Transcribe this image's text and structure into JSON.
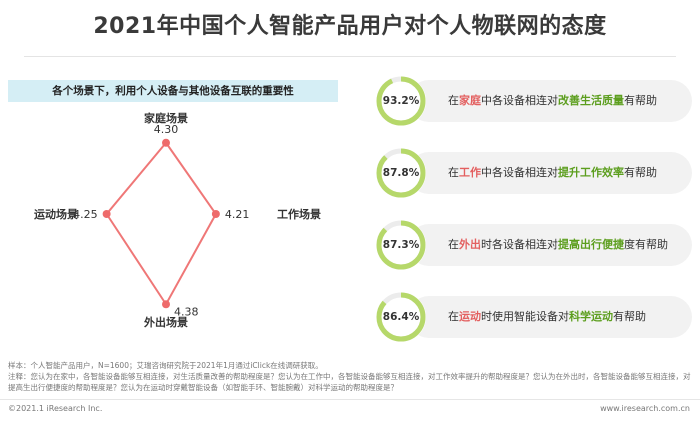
{
  "title": "2021年中国个人智能产品用户对个人物联网的态度",
  "chart_data": [
    {
      "type": "radar",
      "title": "各个场景下，利用个人设备与其他设备互联的重要性",
      "axes": [
        "家庭场景",
        "工作场景",
        "外出场景",
        "运动场景"
      ],
      "values": [
        4.3,
        4.21,
        4.38,
        4.25
      ],
      "value_labels": [
        "4.30",
        "4.21",
        "4.38",
        "4.25"
      ],
      "colors": {
        "line": "#ef7777",
        "point": "#ee6b6b"
      }
    },
    {
      "type": "donut-list",
      "items": [
        {
          "value": 93.2,
          "label": "93.2%",
          "pre": "在",
          "k1": "家庭",
          "mid": "中各设备相连对",
          "k2": "改善生活质量",
          "post": "有帮助"
        },
        {
          "value": 87.8,
          "label": "87.8%",
          "pre": "在",
          "k1": "工作",
          "mid": "中各设备相连对",
          "k2": "提升工作效率",
          "post": "有帮助"
        },
        {
          "value": 87.3,
          "label": "87.3%",
          "pre": "在",
          "k1": "外出",
          "mid": "时各设备相连对",
          "k2": "提高出行便捷",
          "post": "度有帮助"
        },
        {
          "value": 86.4,
          "label": "86.4%",
          "pre": "在",
          "k1": "运动",
          "mid": "时使用智能设备对",
          "k2": "科学运动",
          "post": "有帮助"
        }
      ],
      "colors": {
        "ring": "#b6d86a",
        "track": "#ececec"
      }
    }
  ],
  "notes": {
    "sample": "样本：个人智能产品用户，N=1600；艾瑞咨询研究院于2021年1月通过iClick在线调研获取。",
    "note": "注释：您认为在家中，各智能设备能够互相连接，对生活质量改善的帮助程度是？您认为在工作中，各智能设备能够互相连接，对工作效率提升的帮助程度是？您认为在外出时，各智能设备能够互相连接，对提高生出行便捷度的帮助程度是？您认为在运动时穿戴智能设备（如智能手环、智能腕戴）对科学运动的帮助程度是？"
  },
  "footer": {
    "copyright": "©2021.1 iResearch Inc.",
    "url": "www.iresearch.com.cn"
  }
}
